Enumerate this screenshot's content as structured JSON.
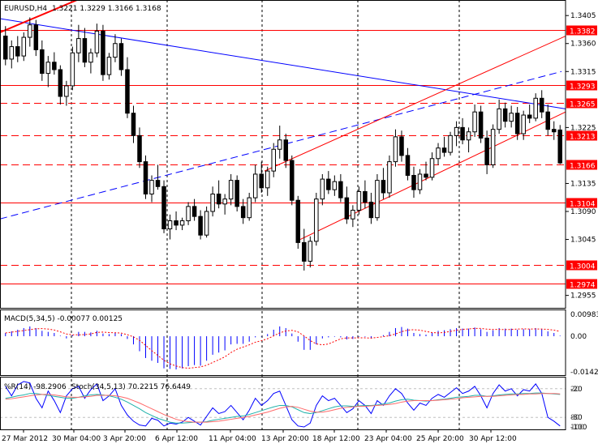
{
  "chart_data": [
    {
      "type": "candlestick",
      "title": "EURUSD,H4",
      "ohlc_readout": "1.3221 1.3229 1.3166 1.3168",
      "ylim": [
        1.2935,
        1.343
      ],
      "y_ticks": [
        "1.3405",
        "1.3360",
        "1.3315",
        "1.3225",
        "1.3135",
        "1.3090",
        "1.3045",
        "1.2955"
      ],
      "price_levels": [
        {
          "value": 1.3382,
          "label": "1.3382",
          "style": "solid"
        },
        {
          "value": 1.3293,
          "label": "1.3293",
          "style": "solid"
        },
        {
          "value": 1.3265,
          "label": "1.3265",
          "style": "dashed"
        },
        {
          "value": 1.3213,
          "label": "1.3213",
          "style": "dashed"
        },
        {
          "value": 1.3166,
          "label": "1.3166",
          "style": "dashed"
        },
        {
          "value": 1.3104,
          "label": "1.3104",
          "style": "solid"
        },
        {
          "value": 1.3004,
          "label": "1.3004",
          "style": "dashed"
        },
        {
          "value": 1.2974,
          "label": "1.2974",
          "style": "solid"
        }
      ],
      "level_color": "#ff0000",
      "trendline_color": "#0000ff",
      "channel_color": "#ff0000",
      "grid": "vertical dashed",
      "x_labels": [
        "27 Mar 2012",
        "30 Mar 04:00",
        "3 Apr 20:00",
        "6 Apr 12:00",
        "11 Apr 04:00",
        "13 Apr 20:00",
        "18 Apr 12:00",
        "23 Apr 04:00",
        "25 Apr 20:00",
        "30 Apr 12:00"
      ],
      "candles": [
        [
          1.3372,
          1.3388,
          1.3325,
          1.3335
        ],
        [
          1.3335,
          1.3365,
          1.332,
          1.3355
        ],
        [
          1.3355,
          1.3372,
          1.333,
          1.334
        ],
        [
          1.334,
          1.3378,
          1.3332,
          1.337
        ],
        [
          1.337,
          1.3402,
          1.3355,
          1.339
        ],
        [
          1.339,
          1.3398,
          1.334,
          1.335
        ],
        [
          1.335,
          1.3365,
          1.33,
          1.3312
        ],
        [
          1.3312,
          1.334,
          1.329,
          1.333
        ],
        [
          1.333,
          1.3346,
          1.331,
          1.3318
        ],
        [
          1.3318,
          1.3325,
          1.3262,
          1.3275
        ],
        [
          1.3275,
          1.33,
          1.326,
          1.3292
        ],
        [
          1.3292,
          1.3355,
          1.3285,
          1.3345
        ],
        [
          1.3345,
          1.339,
          1.333,
          1.3368
        ],
        [
          1.3368,
          1.3385,
          1.3322,
          1.333
        ],
        [
          1.333,
          1.3352,
          1.3312,
          1.3345
        ],
        [
          1.3345,
          1.3392,
          1.3338,
          1.338
        ],
        [
          1.338,
          1.339,
          1.33,
          1.331
        ],
        [
          1.331,
          1.3345,
          1.3302,
          1.3338
        ],
        [
          1.3338,
          1.3375,
          1.333,
          1.336
        ],
        [
          1.336,
          1.3368,
          1.3308,
          1.3318
        ],
        [
          1.3318,
          1.3338,
          1.324,
          1.3248
        ],
        [
          1.3248,
          1.326,
          1.32,
          1.3212
        ],
        [
          1.3212,
          1.3225,
          1.316,
          1.317
        ],
        [
          1.317,
          1.318,
          1.311,
          1.3118
        ],
        [
          1.3118,
          1.3148,
          1.3105,
          1.314
        ],
        [
          1.314,
          1.3165,
          1.3125,
          1.313
        ],
        [
          1.313,
          1.314,
          1.3055,
          1.3062
        ],
        [
          1.3062,
          1.3085,
          1.3045,
          1.3075
        ],
        [
          1.3075,
          1.309,
          1.306,
          1.3068
        ],
        [
          1.3068,
          1.308,
          1.306,
          1.3075
        ],
        [
          1.3075,
          1.3105,
          1.3068,
          1.3098
        ],
        [
          1.3098,
          1.311,
          1.3075,
          1.3082
        ],
        [
          1.3082,
          1.3092,
          1.3045,
          1.3052
        ],
        [
          1.3052,
          1.3098,
          1.3048,
          1.309
        ],
        [
          1.309,
          1.313,
          1.3082,
          1.3118
        ],
        [
          1.3118,
          1.314,
          1.3095,
          1.3102
        ],
        [
          1.3102,
          1.3118,
          1.3085,
          1.311
        ],
        [
          1.311,
          1.315,
          1.31,
          1.314
        ],
        [
          1.314,
          1.3148,
          1.309,
          1.3098
        ],
        [
          1.3098,
          1.311,
          1.307,
          1.308
        ],
        [
          1.308,
          1.312,
          1.3075,
          1.3112
        ],
        [
          1.3112,
          1.3165,
          1.3105,
          1.315
        ],
        [
          1.315,
          1.317,
          1.312,
          1.3128
        ],
        [
          1.3128,
          1.3162,
          1.3115,
          1.3155
        ],
        [
          1.3155,
          1.32,
          1.3145,
          1.319
        ],
        [
          1.319,
          1.3228,
          1.3175,
          1.3205
        ],
        [
          1.3205,
          1.3215,
          1.316,
          1.3172
        ],
        [
          1.3172,
          1.318,
          1.31,
          1.3108
        ],
        [
          1.3108,
          1.3115,
          1.303,
          1.304
        ],
        [
          1.304,
          1.3062,
          1.2995,
          1.301
        ],
        [
          1.301,
          1.305,
          1.3,
          1.3042
        ],
        [
          1.3042,
          1.312,
          1.3035,
          1.311
        ],
        [
          1.311,
          1.315,
          1.31,
          1.3142
        ],
        [
          1.3142,
          1.3155,
          1.3118,
          1.3125
        ],
        [
          1.3125,
          1.3148,
          1.3115,
          1.3138
        ],
        [
          1.3138,
          1.315,
          1.3105,
          1.3112
        ],
        [
          1.3112,
          1.313,
          1.307,
          1.3078
        ],
        [
          1.3078,
          1.31,
          1.3065,
          1.3092
        ],
        [
          1.3092,
          1.313,
          1.3085,
          1.3122
        ],
        [
          1.3122,
          1.314,
          1.3095,
          1.3105
        ],
        [
          1.3105,
          1.312,
          1.307,
          1.308
        ],
        [
          1.308,
          1.315,
          1.3075,
          1.314
        ],
        [
          1.314,
          1.316,
          1.311,
          1.312
        ],
        [
          1.312,
          1.318,
          1.3112,
          1.317
        ],
        [
          1.317,
          1.3222,
          1.3162,
          1.321
        ],
        [
          1.321,
          1.322,
          1.317,
          1.318
        ],
        [
          1.318,
          1.3192,
          1.314,
          1.3148
        ],
        [
          1.3148,
          1.3162,
          1.3112,
          1.3125
        ],
        [
          1.3125,
          1.3158,
          1.3118,
          1.315
        ],
        [
          1.315,
          1.317,
          1.314,
          1.3145
        ],
        [
          1.3145,
          1.3185,
          1.314,
          1.3175
        ],
        [
          1.3175,
          1.32,
          1.3165,
          1.3192
        ],
        [
          1.3192,
          1.321,
          1.3178,
          1.3185
        ],
        [
          1.3185,
          1.3218,
          1.318,
          1.3212
        ],
        [
          1.3212,
          1.3235,
          1.3195,
          1.3225
        ],
        [
          1.3225,
          1.324,
          1.3198,
          1.3205
        ],
        [
          1.3205,
          1.3225,
          1.3185,
          1.3218
        ],
        [
          1.3218,
          1.3262,
          1.321,
          1.325
        ],
        [
          1.325,
          1.326,
          1.32,
          1.3208
        ],
        [
          1.3208,
          1.322,
          1.315,
          1.3165
        ],
        [
          1.3165,
          1.323,
          1.316,
          1.3222
        ],
        [
          1.3222,
          1.327,
          1.3215,
          1.3255
        ],
        [
          1.3255,
          1.3265,
          1.3225,
          1.3235
        ],
        [
          1.3235,
          1.326,
          1.3225,
          1.3248
        ],
        [
          1.3248,
          1.3258,
          1.3205,
          1.3215
        ],
        [
          1.3215,
          1.3252,
          1.3205,
          1.3245
        ],
        [
          1.3245,
          1.3262,
          1.3232,
          1.324
        ],
        [
          1.324,
          1.328,
          1.3235,
          1.3272
        ],
        [
          1.3272,
          1.3285,
          1.324,
          1.325
        ],
        [
          1.325,
          1.3262,
          1.3212,
          1.3222
        ],
        [
          1.3222,
          1.3235,
          1.3205,
          1.3218
        ],
        [
          1.3221,
          1.3229,
          1.3166,
          1.3168
        ]
      ]
    },
    {
      "type": "histogram",
      "title": "MACD(5,34,5) -0.00077 0.00125",
      "y_ticks": [
        "0.00983",
        "0.00",
        "-0.01427"
      ],
      "ylim": [
        -0.01427,
        0.00983
      ],
      "main_color": "#0000ff",
      "signal_color": "#ff0000",
      "values": [
        0.0012,
        0.0018,
        0.0024,
        0.003,
        0.0036,
        0.003,
        0.002,
        0.0016,
        0.0012,
        0.0002,
        -0.0008,
        0.0004,
        0.0016,
        0.0016,
        0.0014,
        0.002,
        0.001,
        0.0008,
        0.0012,
        0.0008,
        -0.001,
        -0.003,
        -0.0055,
        -0.008,
        -0.009,
        -0.0098,
        -0.0118,
        -0.012,
        -0.0122,
        -0.0118,
        -0.011,
        -0.0106,
        -0.0108,
        -0.009,
        -0.0068,
        -0.006,
        -0.0052,
        -0.003,
        -0.0028,
        -0.0028,
        -0.002,
        -0.0004,
        -0.0002,
        0.0008,
        0.0024,
        0.0036,
        0.003,
        0.001,
        -0.002,
        -0.005,
        -0.005,
        -0.003,
        -0.0008,
        -0.0004,
        -0.0002,
        -0.0004,
        -0.0012,
        -0.001,
        -0.0002,
        -0.0002,
        -0.0008,
        0.0,
        0.0004,
        0.0016,
        0.003,
        0.0034,
        0.0028,
        0.0012,
        0.0008,
        0.0006,
        0.0014,
        0.002,
        0.0022,
        0.0026,
        0.003,
        0.0028,
        0.0028,
        0.0032,
        0.0026,
        0.0016,
        0.0022,
        0.003,
        0.0028,
        0.0028,
        0.0024,
        0.0026,
        0.0026,
        0.003,
        0.0026,
        0.0018,
        0.0012,
        0.0002
      ]
    },
    {
      "type": "line",
      "title": "%R(14) -98.2906",
      "title2": "Stoch(34,5,13) 70.2215 76.6449",
      "y_ticks": [
        "-20",
        "-80",
        "-100"
      ],
      "right_ticks_extra": [
        "20",
        "80",
        "100"
      ],
      "ylim": [
        -100,
        0
      ],
      "series": [
        {
          "name": "%R(14)",
          "color": "#0000ff",
          "values": [
            -15,
            -35,
            -12,
            -5,
            -8,
            -40,
            -60,
            -25,
            -45,
            -70,
            -35,
            -20,
            -15,
            -40,
            -22,
            -10,
            -45,
            -35,
            -20,
            -55,
            -75,
            -88,
            -96,
            -98,
            -82,
            -86,
            -98,
            -92,
            -94,
            -90,
            -80,
            -88,
            -96,
            -78,
            -60,
            -72,
            -68,
            -55,
            -70,
            -85,
            -65,
            -40,
            -55,
            -45,
            -30,
            -25,
            -55,
            -85,
            -98,
            -100,
            -92,
            -55,
            -35,
            -45,
            -40,
            -55,
            -70,
            -62,
            -45,
            -55,
            -72,
            -45,
            -55,
            -35,
            -20,
            -30,
            -50,
            -65,
            -50,
            -55,
            -40,
            -32,
            -38,
            -28,
            -18,
            -30,
            -25,
            -15,
            -35,
            -60,
            -30,
            -12,
            -25,
            -20,
            -35,
            -22,
            -25,
            -10,
            -30,
            -80,
            -88,
            -98
          ]
        },
        {
          "name": "Stoch main",
          "color": "#20b2aa",
          "values": [
            -40,
            -38,
            -35,
            -33,
            -30,
            -30,
            -32,
            -34,
            -36,
            -38,
            -40,
            -40,
            -38,
            -35,
            -33,
            -32,
            -33,
            -35,
            -38,
            -42,
            -48,
            -55,
            -62,
            -70,
            -76,
            -82,
            -86,
            -90,
            -92,
            -92,
            -91,
            -90,
            -90,
            -89,
            -86,
            -84,
            -82,
            -80,
            -78,
            -77,
            -74,
            -70,
            -66,
            -62,
            -58,
            -55,
            -55,
            -58,
            -64,
            -70,
            -72,
            -70,
            -66,
            -62,
            -58,
            -56,
            -56,
            -57,
            -56,
            -55,
            -55,
            -54,
            -52,
            -50,
            -46,
            -43,
            -42,
            -44,
            -45,
            -46,
            -45,
            -43,
            -42,
            -40,
            -38,
            -37,
            -36,
            -34,
            -34,
            -36,
            -35,
            -33,
            -32,
            -31,
            -31,
            -30,
            -30,
            -29,
            -29,
            -30,
            -31,
            -32
          ]
        },
        {
          "name": "Stoch signal",
          "color": "#ff6a6a",
          "values": [
            -42,
            -41,
            -39,
            -37,
            -35,
            -33,
            -32,
            -32,
            -33,
            -35,
            -37,
            -38,
            -38,
            -37,
            -36,
            -34,
            -34,
            -34,
            -35,
            -37,
            -40,
            -45,
            -50,
            -56,
            -62,
            -68,
            -74,
            -79,
            -84,
            -87,
            -89,
            -90,
            -90,
            -90,
            -89,
            -88,
            -86,
            -84,
            -82,
            -80,
            -78,
            -75,
            -72,
            -69,
            -65,
            -61,
            -58,
            -57,
            -59,
            -63,
            -67,
            -69,
            -69,
            -67,
            -64,
            -61,
            -59,
            -58,
            -57,
            -57,
            -56,
            -55,
            -54,
            -53,
            -51,
            -48,
            -46,
            -45,
            -45,
            -45,
            -45,
            -44,
            -43,
            -42,
            -41,
            -39,
            -38,
            -37,
            -36,
            -36,
            -36,
            -35,
            -34,
            -33,
            -32,
            -32,
            -31,
            -31,
            -30,
            -30,
            -30,
            -31
          ]
        }
      ]
    }
  ]
}
